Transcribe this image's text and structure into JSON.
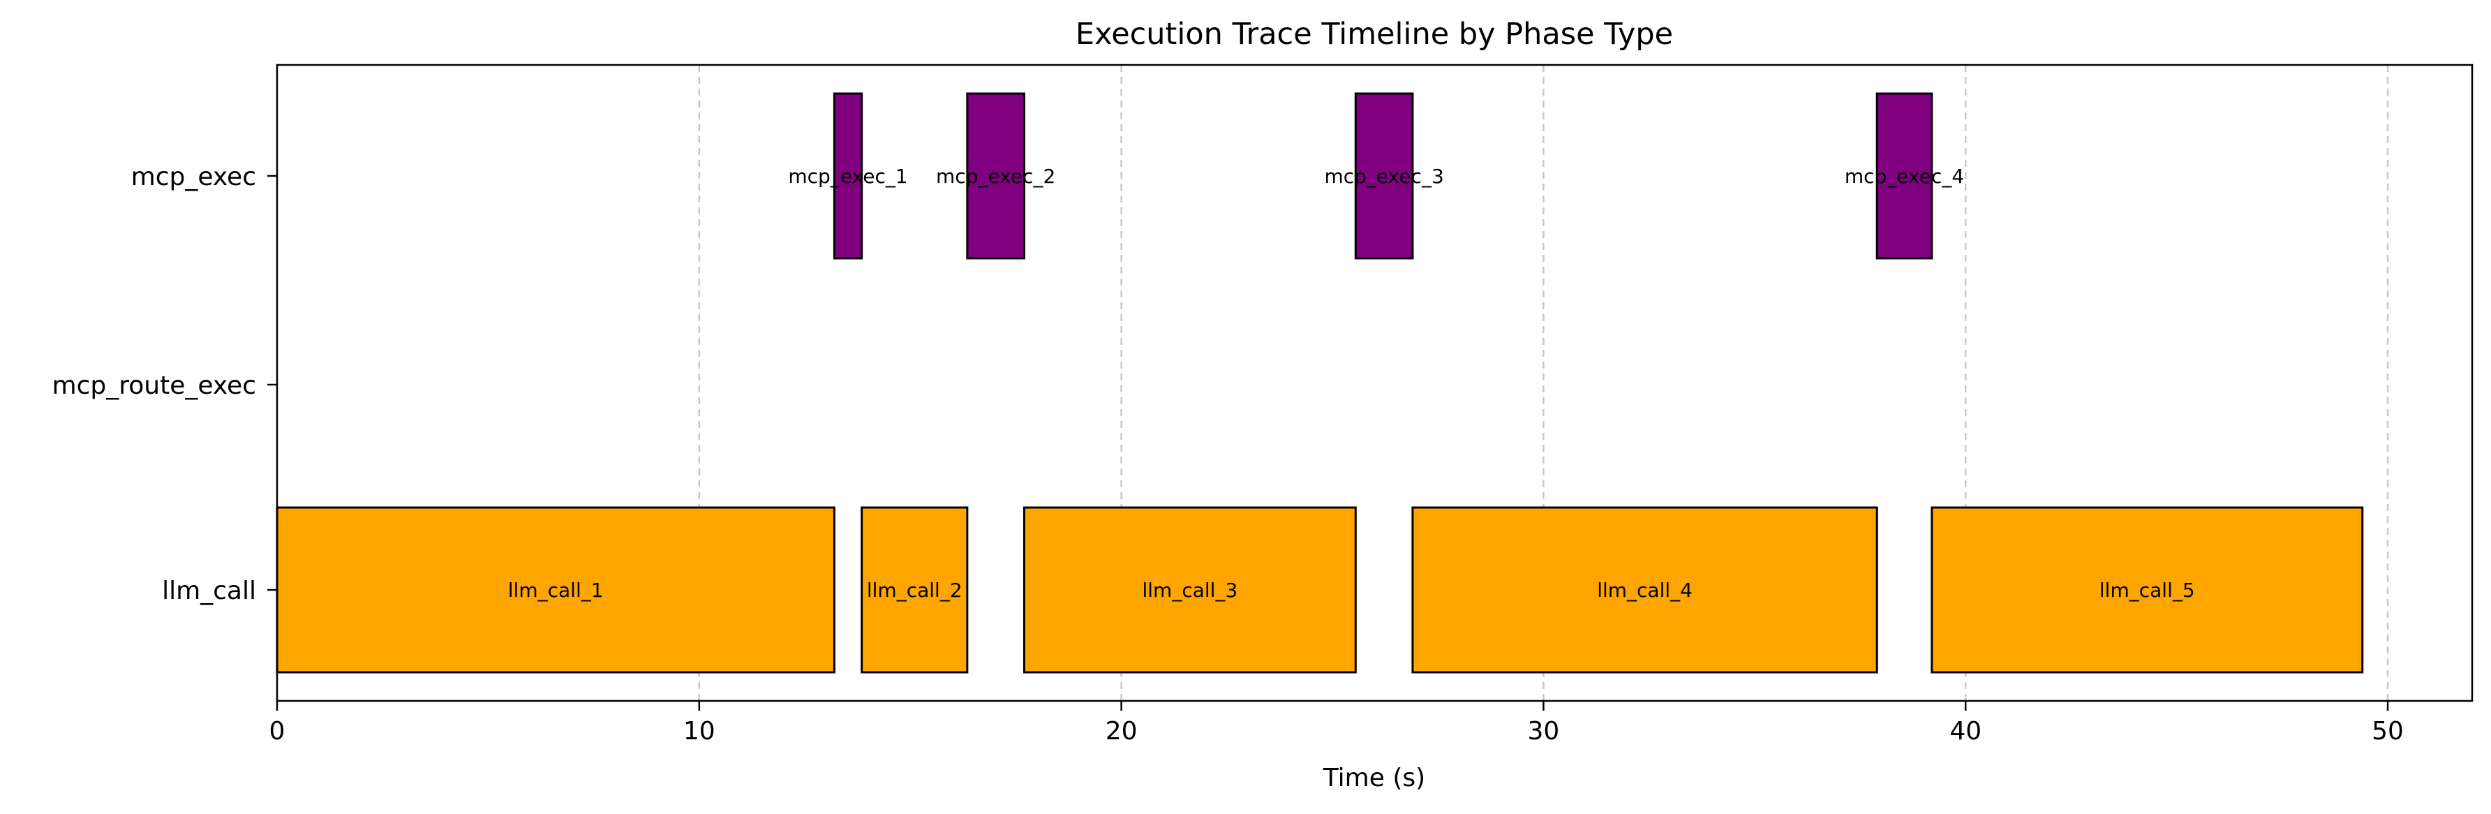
{
  "chart_data": {
    "type": "gantt",
    "title": "Execution Trace Timeline by Phase Type",
    "xlabel": "Time (s)",
    "ylabel": "",
    "xlim": [
      0,
      52
    ],
    "x_ticks": [
      0,
      10,
      20,
      30,
      40,
      50
    ],
    "grid": "x-dashed",
    "categories": [
      "mcp_exec",
      "mcp_route_exec",
      "llm_call"
    ],
    "colors": {
      "llm_call": "#FFA500",
      "mcp_exec": "#800080"
    },
    "segments": [
      {
        "category": "llm_call",
        "label": "llm_call_1",
        "start": 0.0,
        "end": 13.2
      },
      {
        "category": "mcp_exec",
        "label": "mcp_exec_1",
        "start": 13.2,
        "end": 13.85
      },
      {
        "category": "llm_call",
        "label": "llm_call_2",
        "start": 13.85,
        "end": 16.35
      },
      {
        "category": "mcp_exec",
        "label": "mcp_exec_2",
        "start": 16.35,
        "end": 17.7
      },
      {
        "category": "llm_call",
        "label": "llm_call_3",
        "start": 17.7,
        "end": 25.55
      },
      {
        "category": "mcp_exec",
        "label": "mcp_exec_3",
        "start": 25.55,
        "end": 26.9
      },
      {
        "category": "llm_call",
        "label": "llm_call_4",
        "start": 26.9,
        "end": 37.9
      },
      {
        "category": "mcp_exec",
        "label": "mcp_exec_4",
        "start": 37.9,
        "end": 39.2
      },
      {
        "category": "llm_call",
        "label": "llm_call_5",
        "start": 39.2,
        "end": 49.4
      }
    ]
  }
}
